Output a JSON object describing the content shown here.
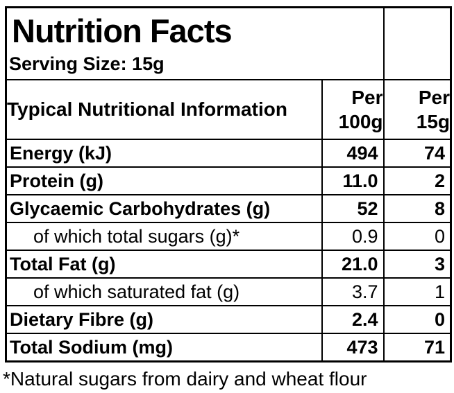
{
  "label": {
    "title": "Nutrition Facts",
    "serving_size": "Serving Size: 15g",
    "footnote": "*Natural sugars from dairy and wheat flour"
  },
  "table": {
    "header": {
      "name_col": "Typical Nutritional Information",
      "per_100g_col": "Per 100g",
      "per_15g_col": "Per 15g"
    },
    "rows": [
      {
        "label": "Energy (kJ)",
        "per_100g": "494",
        "per_15g": "74",
        "emphasis": "bold",
        "indent": false
      },
      {
        "label": "Protein (g)",
        "per_100g": "11.0",
        "per_15g": "2",
        "emphasis": "bold",
        "indent": false
      },
      {
        "label": "Glycaemic Carbohydrates (g)",
        "per_100g": "52",
        "per_15g": "8",
        "emphasis": "bold",
        "indent": false
      },
      {
        "label": "of which total sugars (g)*",
        "per_100g": "0.9",
        "per_15g": "0",
        "emphasis": "regular",
        "indent": true
      },
      {
        "label": "Total Fat (g)",
        "per_100g": "21.0",
        "per_15g": "3",
        "emphasis": "bold",
        "indent": false
      },
      {
        "label": "of which saturated fat (g)",
        "per_100g": "3.7",
        "per_15g": "1",
        "emphasis": "regular",
        "indent": true
      },
      {
        "label": "Dietary Fibre (g)",
        "per_100g": "2.4",
        "per_15g": "0",
        "emphasis": "bold",
        "indent": false
      },
      {
        "label": "Total Sodium (mg)",
        "per_100g": "473",
        "per_15g": "71",
        "emphasis": "bold",
        "indent": false
      }
    ]
  },
  "colors": {
    "text": "#000000",
    "border": "#000000",
    "background": "#ffffff"
  }
}
